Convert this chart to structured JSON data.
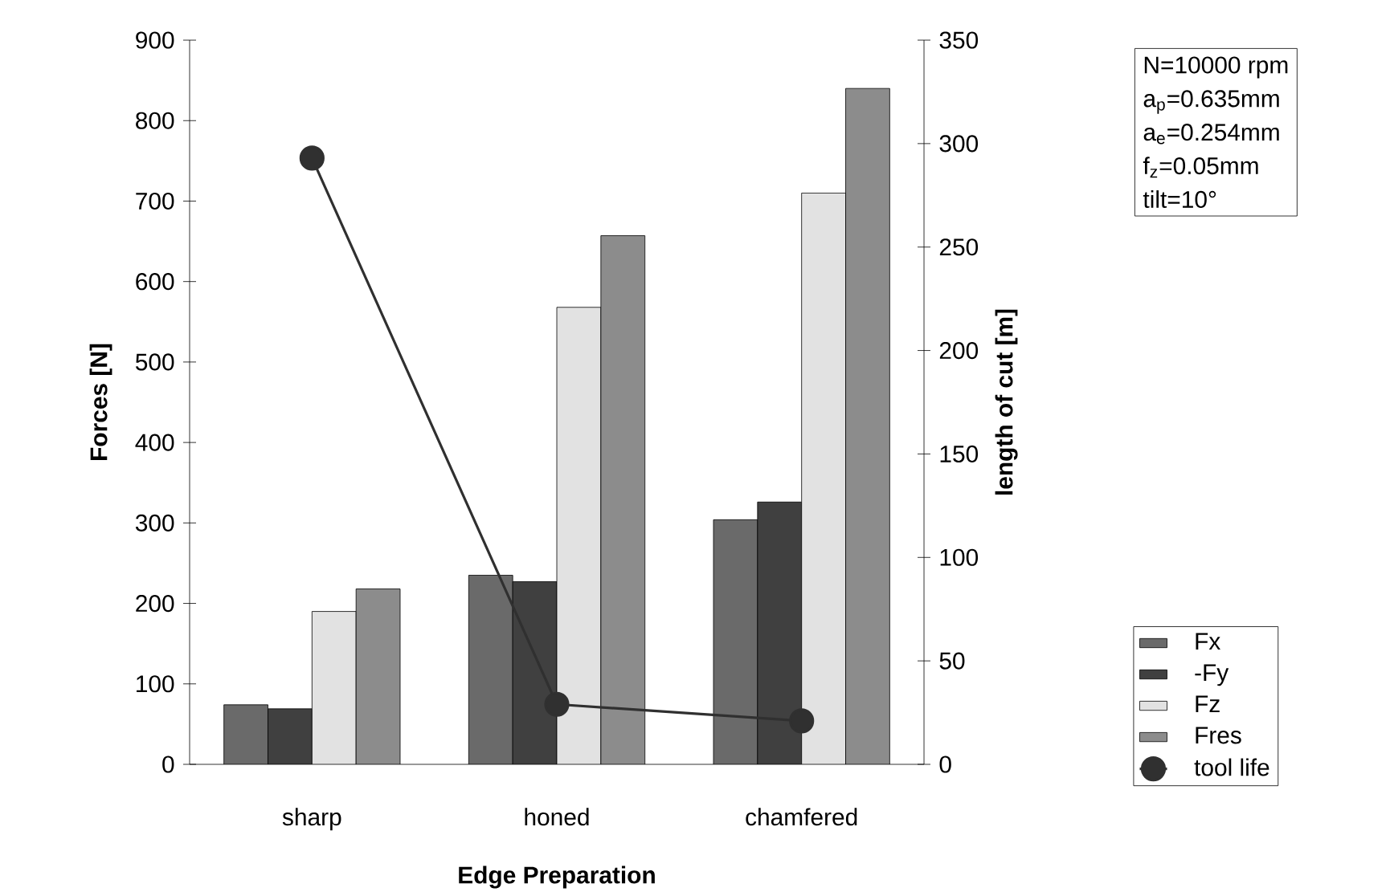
{
  "chart_data": {
    "type": "bar",
    "xlabel": "Edge Preparation",
    "ylabel": "Forces [N]",
    "y2label": "length of cut [m]",
    "categories": [
      "sharp",
      "honed",
      "chamfered"
    ],
    "series": [
      {
        "name": "Fx",
        "color": "#6a6a6a",
        "values": [
          74,
          235,
          304
        ]
      },
      {
        "name": "-Fy",
        "color": "#404040",
        "values": [
          69,
          227,
          326
        ]
      },
      {
        "name": "Fz",
        "color": "#e2e2e2",
        "values": [
          190,
          568,
          710
        ]
      },
      {
        "name": "Fres",
        "color": "#8c8c8c",
        "values": [
          218,
          657,
          840
        ]
      },
      {
        "name": "tool life",
        "type": "line",
        "axis": "y2",
        "color": "#303030",
        "values": [
          293,
          29,
          21
        ]
      }
    ],
    "ylim": [
      0,
      900
    ],
    "yticks": [
      0,
      100,
      200,
      300,
      400,
      500,
      600,
      700,
      800,
      900
    ],
    "y2lim": [
      0,
      350
    ],
    "y2ticks": [
      0,
      50,
      100,
      150,
      200,
      250,
      300,
      350
    ],
    "marker": "circle",
    "line_style": "solid",
    "legend": "right",
    "grid": false,
    "annotations": [
      "N=10000 rpm",
      "a$_{p}$=0.635mm",
      "a$_{e}$=0.254mm",
      "f$_{z}$=0.05mm",
      "tilt=10°"
    ]
  }
}
